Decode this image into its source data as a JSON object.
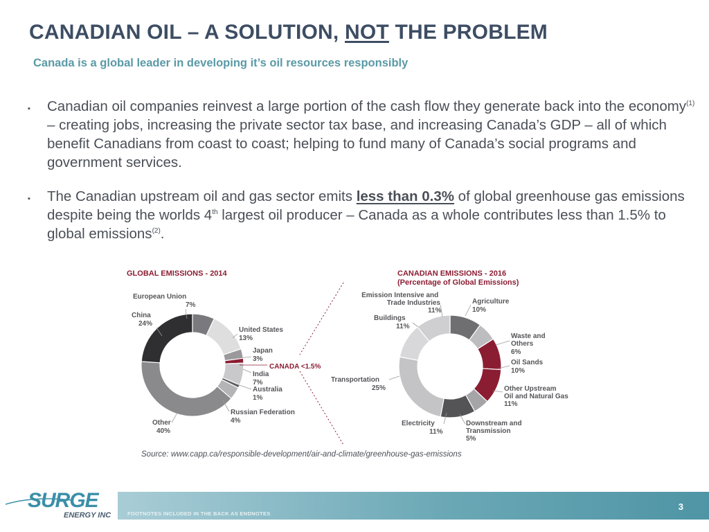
{
  "slide": {
    "title_pre": "CANADIAN OIL – A SOLUTION, ",
    "title_emph": "NOT",
    "title_post": " THE PROBLEM",
    "subtitle": "Canada is a global leader in developing it’s oil resources responsibly"
  },
  "bullets": [
    {
      "marker": "▪",
      "p1": "Canadian oil companies reinvest a large portion of the cash flow they generate back into the economy",
      "sup1": "(1)",
      "p2": " – creating jobs, increasing the private sector tax base, and increasing Canada’s GDP – all of which benefit Canadians from coast to coast; helping to fund many of Canada’s social programs and government services."
    },
    {
      "marker": "▪",
      "p1": "The Canadian upstream oil and gas sector emits ",
      "highlight": "less than 0.3%",
      "p2": " of global greenhouse gas emissions despite being the worlds 4",
      "sup_th": "th",
      "p3": " largest oil producer – Canada as a whole contributes less than 1.5% to global emissions",
      "sup2": "(2)",
      "p4": "."
    }
  ],
  "chart_data": [
    {
      "type": "pie",
      "donut": true,
      "title": "GLOBAL EMISSIONS - 2014",
      "slices": [
        {
          "name": "European Union",
          "label": "7%",
          "value": 7,
          "color": "#7a7a7e"
        },
        {
          "name": "United States",
          "label": "13%",
          "value": 13,
          "color": "#dededf"
        },
        {
          "name": "Japan",
          "label": "3%",
          "value": 3,
          "color": "#9a9a9d"
        },
        {
          "name": "CANADA",
          "label": "<1.5%",
          "value": 1.5,
          "color": "#8b1d32"
        },
        {
          "name": "India",
          "label": "7%",
          "value": 7,
          "color": "#c9c9cb"
        },
        {
          "name": "Australia",
          "label": "1%",
          "value": 1,
          "color": "#5c5c60"
        },
        {
          "name": "Russian Federation",
          "label": "4%",
          "value": 4,
          "color": "#b4b4b7"
        },
        {
          "name": "Other",
          "label": "40%",
          "value": 40,
          "color": "#8a8a8d"
        },
        {
          "name": "China",
          "label": "24%",
          "value": 24,
          "color": "#2f2f32"
        }
      ],
      "callout": "CANADA <1.5%",
      "callout_color": "#8b1d32"
    },
    {
      "type": "pie",
      "donut": true,
      "title": "CANADIAN EMISSIONS - 2016",
      "subtitle": "(Percentage of Global Emissions)",
      "slices": [
        {
          "name": "Agriculture",
          "label": "10%",
          "value": 10,
          "color": "#6f6f72"
        },
        {
          "name": "Waste and Others",
          "label": "6%",
          "value": 6,
          "color": "#bdbdc0"
        },
        {
          "name": "Oil Sands",
          "label": "10%",
          "value": 10,
          "color": "#8b1d32"
        },
        {
          "name": "Other Upstream Oil and Natural Gas",
          "label": "11%",
          "value": 11,
          "color": "#8b1d32"
        },
        {
          "name": "Downstream and Transmission",
          "label": "5%",
          "value": 5,
          "color": "#a5a5a8"
        },
        {
          "name": "Electricity",
          "label": "11%",
          "value": 11,
          "color": "#545457"
        },
        {
          "name": "Transportation",
          "label": "25%",
          "value": 25,
          "color": "#c4c4c6"
        },
        {
          "name": "Buildings",
          "label": "11%",
          "value": 11,
          "color": "#d8d8da"
        },
        {
          "name": "Emission Intensive and Trade Industries",
          "label": "11%",
          "value": 11,
          "color": "#cfcfd1"
        }
      ]
    }
  ],
  "source": "Source: www.capp.ca/responsible-development/air-and-climate/greenhouse-gas-emissions",
  "footer": {
    "footnote": "FOOTNOTES INCLUDED IN THE BACK AS ENDNOTES",
    "page_number": "3"
  },
  "logo": {
    "word": "SURGE",
    "sub": "ENERGY INC"
  }
}
